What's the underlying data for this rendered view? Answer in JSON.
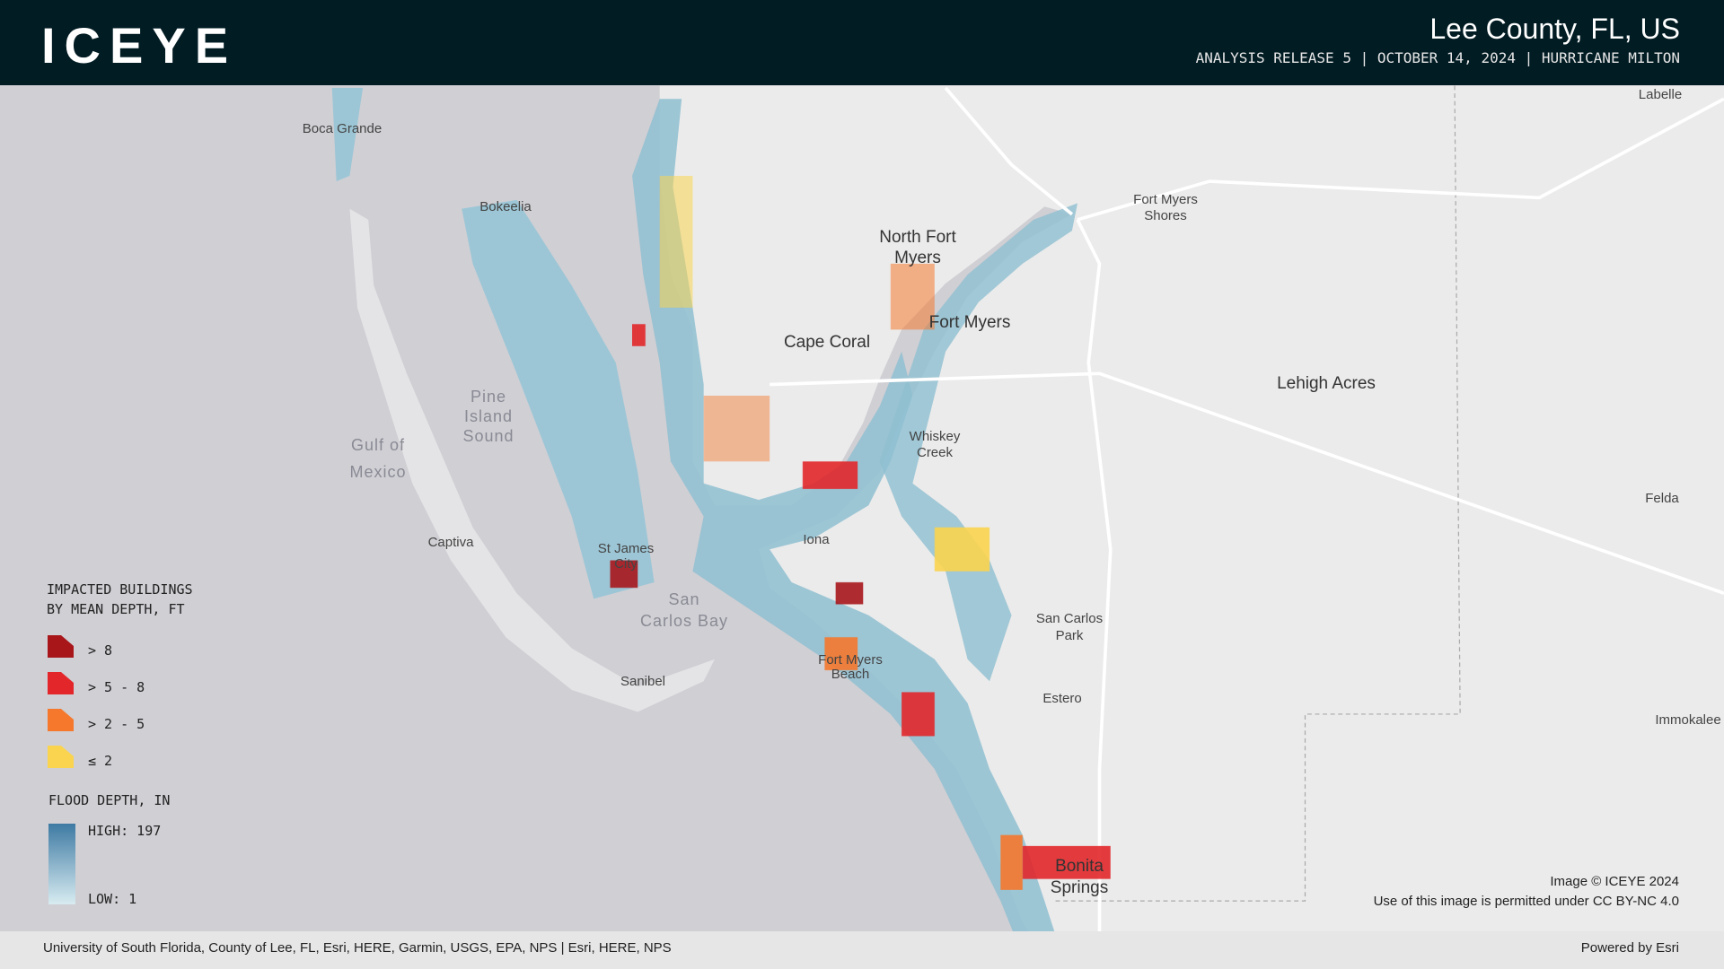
{
  "header": {
    "logo": "ICEYE",
    "title": "Lee County,  FL, US",
    "subtitle": "ANALYSIS RELEASE 5 | OCTOBER 14, 2024 | HURRICANE MILTON"
  },
  "map_labels": [
    "Boca Grande",
    "Bokeelia",
    "North Fort",
    "Myers",
    "Cape Coral",
    "Fort Myers",
    "Fort Myers",
    "Shores",
    "Lehigh Acres",
    "Labelle",
    "Pine",
    "Island",
    "Sound",
    "Gulf of",
    "Mexico",
    "Whiskey",
    "Creek",
    "Captiva",
    "St James",
    "City",
    "Iona",
    "Felda",
    "San",
    "Carlos Bay",
    "San Carlos",
    "Park",
    "Fort Myers",
    "Beach",
    "Sanibel",
    "Estero",
    "Immokalee",
    "Bonita",
    "Springs"
  ],
  "legend": {
    "buildings_title": [
      "IMPACTED BUILDINGS",
      "BY MEAN DEPTH, FT"
    ],
    "buildings": [
      {
        "label": "> 8",
        "color": "#a8161a"
      },
      {
        "label": "> 5 - 8",
        "color": "#e3262a"
      },
      {
        "label": "> 2 - 5",
        "color": "#f5782c"
      },
      {
        "label": "≤ 2",
        "color": "#fbd44f"
      }
    ],
    "flood_title": "FLOOD DEPTH, IN",
    "high": "HIGH: 197",
    "low": "LOW: 1"
  },
  "credits": {
    "copyright": "Image © ICEYE 2024",
    "license": "Use of this image is permitted under CC BY-NC 4.0",
    "sources": "University of South Florida, County of Lee, FL, Esri, HERE, Garmin, USGS, EPA, NPS | Esri, HERE, NPS",
    "powered": "Powered by Esri"
  }
}
